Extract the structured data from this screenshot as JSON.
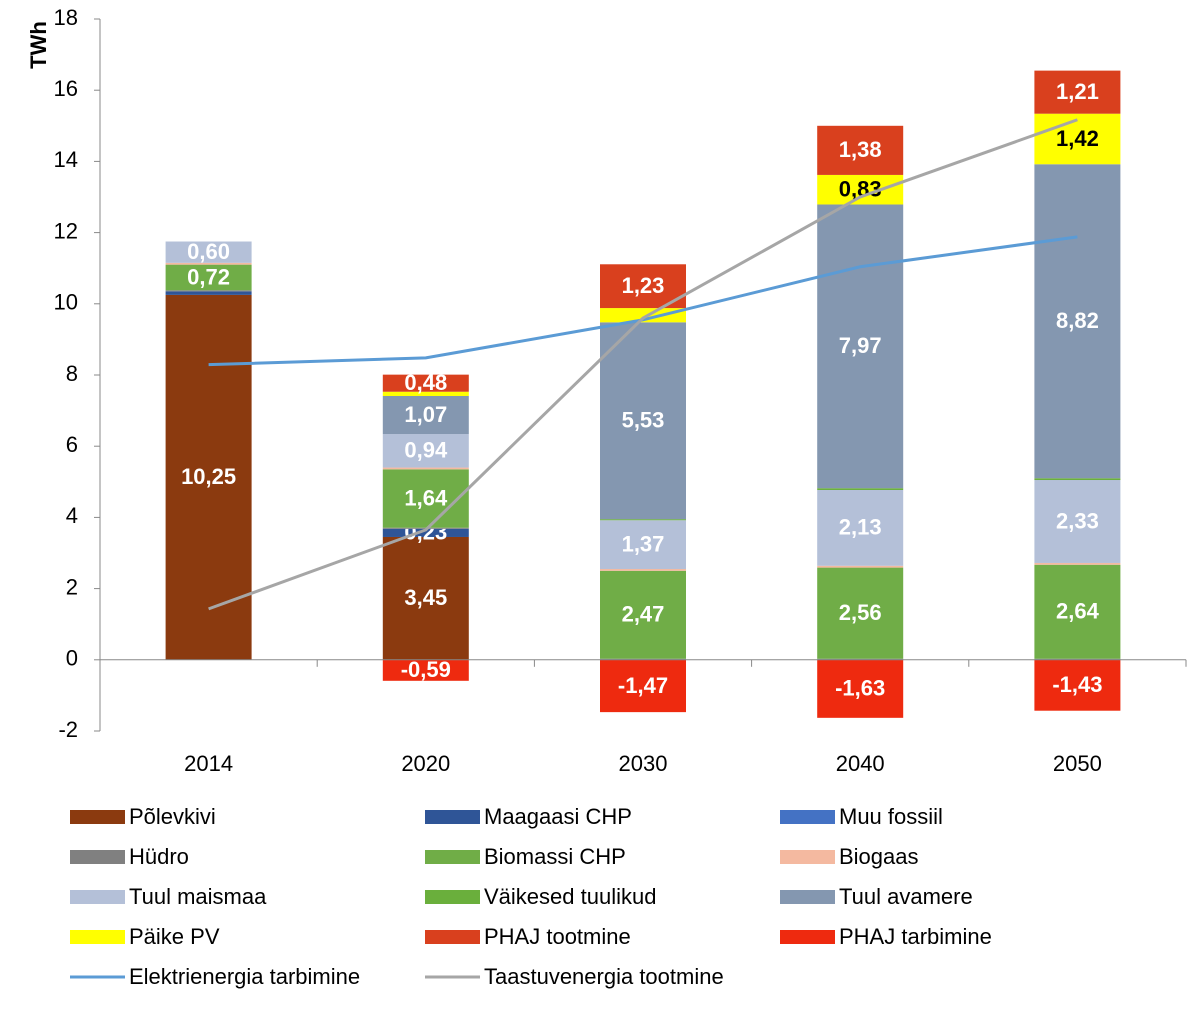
{
  "chart_data": {
    "type": "bar",
    "ylabel": "TWh",
    "categories": [
      "2014",
      "2020",
      "2030",
      "2040",
      "2050"
    ],
    "ylim": [
      -2,
      18
    ],
    "yticks": [
      -2,
      0,
      2,
      4,
      6,
      8,
      10,
      12,
      14,
      16,
      18
    ],
    "stacked": true,
    "series": [
      {
        "name": "Põlevkivi",
        "color": "#8b3a0f",
        "label_color": "#ffffff",
        "values": [
          10.25,
          3.45,
          0,
          0,
          0
        ],
        "value_labels": [
          "10,25",
          "3,45",
          null,
          null,
          null
        ]
      },
      {
        "name": "Maagaasi CHP",
        "color": "#2f5597",
        "label_color": "#ffffff",
        "values": [
          0.1,
          0.23,
          0,
          0,
          0
        ],
        "value_labels": [
          null,
          "0,23",
          null,
          null,
          null
        ]
      },
      {
        "name": "Muu fossiil",
        "color": "#4472c4",
        "label_color": "#ffffff",
        "values": [
          0,
          0,
          0,
          0,
          0
        ]
      },
      {
        "name": "Hüdro",
        "color": "#808080",
        "label_color": "#ffffff",
        "values": [
          0.03,
          0.03,
          0.03,
          0.03,
          0.03
        ]
      },
      {
        "name": "Biomassi CHP",
        "color": "#70ad47",
        "label_color": "#ffffff",
        "values": [
          0.72,
          1.64,
          2.47,
          2.56,
          2.64
        ],
        "value_labels": [
          "0,72",
          "1,64",
          "2,47",
          "2,56",
          "2,64"
        ]
      },
      {
        "name": "Biogaas",
        "color": "#f4b9a0",
        "label_color": "#ffffff",
        "values": [
          0.05,
          0.05,
          0.05,
          0.05,
          0.05
        ]
      },
      {
        "name": "Tuul maismaa",
        "color": "#b4c0d8",
        "label_color": "#ffffff",
        "values": [
          0.6,
          0.94,
          1.37,
          2.13,
          2.33
        ],
        "value_labels": [
          "0,60",
          "0,94",
          "1,37",
          "2,13",
          "2,33"
        ]
      },
      {
        "name": "Väikesed tuulikud",
        "color": "#6aaf3c",
        "label_color": "#ffffff",
        "values": [
          0,
          0,
          0.03,
          0.05,
          0.05
        ]
      },
      {
        "name": "Tuul avamere",
        "color": "#8497b0",
        "label_color": "#ffffff",
        "values": [
          0,
          1.07,
          5.53,
          7.97,
          8.82
        ],
        "value_labels": [
          null,
          "1,07",
          "5,53",
          "7,97",
          "8,82"
        ]
      },
      {
        "name": "Päike PV",
        "color": "#ffff00",
        "label_color": "#000000",
        "values": [
          0,
          0.12,
          0.4,
          0.83,
          1.42
        ],
        "value_labels": [
          null,
          null,
          null,
          "0,83",
          "1,42"
        ]
      },
      {
        "name": "PHAJ tootmine",
        "color": "#d9401e",
        "label_color": "#ffffff",
        "values": [
          0,
          0.48,
          1.23,
          1.38,
          1.21
        ],
        "value_labels": [
          null,
          "0,48",
          "1,23",
          "1,38",
          "1,21"
        ]
      },
      {
        "name": "PHAJ tarbimine",
        "color": "#ee2a0f",
        "label_color": "#ffffff",
        "values": [
          0,
          -0.59,
          -1.47,
          -1.63,
          -1.43
        ],
        "value_labels": [
          null,
          "-0,59",
          "-1,47",
          "-1,63",
          "-1,43"
        ]
      },
      {
        "name": "Elektrienergia tarbimine",
        "type": "line",
        "color": "#5b9bd5",
        "values": [
          8.29,
          8.48,
          9.55,
          11.04,
          11.88
        ]
      },
      {
        "name": "Taastuvenergia tootmine",
        "type": "line",
        "color": "#a6a6a6",
        "values": [
          1.43,
          3.65,
          9.6,
          13.0,
          15.17
        ]
      }
    ]
  }
}
